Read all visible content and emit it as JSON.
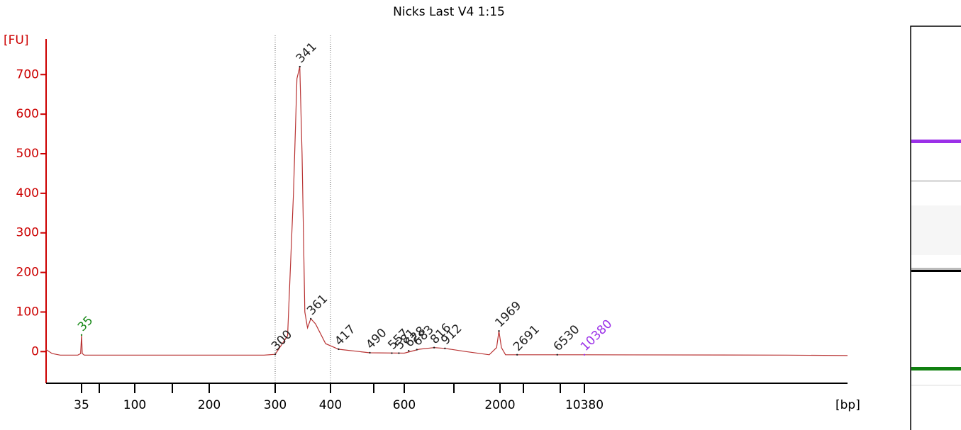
{
  "chart_data": {
    "type": "line",
    "title": "Nicks Last V4 1:15",
    "ylabel": "[FU]",
    "xlabel": "[bp]",
    "ylim": [
      -80,
      790
    ],
    "yticks": [
      0,
      100,
      200,
      300,
      400,
      500,
      600,
      700
    ],
    "xlim": [
      20,
      60000
    ],
    "xticks": [
      35,
      100,
      200,
      300,
      400,
      600,
      2000,
      10380
    ],
    "minor_xticks": [
      50,
      150,
      500,
      1000,
      3000,
      7000
    ],
    "color": "#b83232",
    "y_axis_color": "#cc0000",
    "region": [
      300,
      400
    ],
    "x": [
      20,
      22,
      25,
      33,
      34.5,
      35,
      35.5,
      37,
      100,
      200,
      280,
      300,
      320,
      330,
      336,
      341,
      345,
      350,
      355,
      361,
      370,
      390,
      417,
      490,
      600,
      700,
      816,
      912,
      1200,
      1700,
      1900,
      1969,
      2050,
      2200,
      2691,
      6530,
      10380,
      40000,
      60000
    ],
    "values": [
      5,
      -5,
      -9,
      -9,
      -5,
      42,
      -5,
      -9,
      -9,
      -9,
      -9,
      -7,
      40,
      400,
      690,
      720,
      500,
      100,
      60,
      83,
      70,
      20,
      6,
      -3,
      -4,
      6,
      10,
      8,
      0,
      -8,
      10,
      52,
      10,
      -8,
      -8,
      -8,
      -8,
      -9,
      -10
    ],
    "peaks": {
      "bp": [
        35,
        300,
        341,
        361,
        417,
        490,
        557,
        581,
        628,
        683,
        816,
        912,
        1969,
        2691,
        6530,
        10380
      ],
      "fu": [
        42,
        -7,
        720,
        83,
        6,
        -3,
        -4,
        -4,
        2,
        5,
        10,
        8,
        52,
        -8,
        -8,
        -8
      ],
      "colors": [
        "#1a8a1a",
        "#222",
        "#222",
        "#222",
        "#222",
        "#222",
        "#222",
        "#222",
        "#222",
        "#222",
        "#222",
        "#222",
        "#222",
        "#222",
        "#222",
        "#9b30e8"
      ]
    }
  }
}
